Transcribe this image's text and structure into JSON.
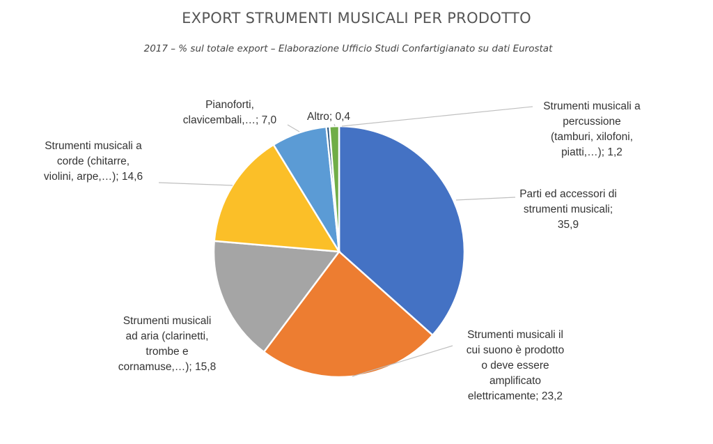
{
  "chart_data": {
    "type": "pie",
    "title": "EXPORT STRUMENTI MUSICALI PER PRODOTTO",
    "subtitle": "2017 – % sul totale export – Elaborazione Ufficio Studi Confartigianato su dati Eurostat",
    "slices": [
      {
        "label": [
          "Parti ed accessori di",
          "strumenti musicali;",
          "35,9"
        ],
        "value": 35.9,
        "color": "#4472C4"
      },
      {
        "label": [
          "Strumenti musicali il",
          "cui suono è prodotto",
          "o deve essere",
          "amplificato",
          "elettricamente; 23,2"
        ],
        "value": 23.2,
        "color": "#ED7D31"
      },
      {
        "label": [
          "Strumenti musicali",
          "ad aria (clarinetti,",
          "trombe e",
          "cornamuse,…); 15,8"
        ],
        "value": 15.8,
        "color": "#A5A5A5"
      },
      {
        "label": [
          "Strumenti musicali a",
          "corde (chitarre,",
          "violini, arpe,…); 14,6"
        ],
        "value": 14.6,
        "color": "#FBBF28"
      },
      {
        "label": [
          "Pianoforti,",
          "clavicembali,…; 7,0"
        ],
        "value": 7.0,
        "color": "#5B9BD5"
      },
      {
        "label": [
          "Altro; 0,4"
        ],
        "value": 0.4,
        "color": "#1F4E79"
      },
      {
        "label": [
          "Strumenti musicali a",
          "percussione",
          "(tamburi, xilofoni,",
          "piatti,…); 1,2"
        ],
        "value": 1.2,
        "color": "#70AD47"
      }
    ]
  }
}
